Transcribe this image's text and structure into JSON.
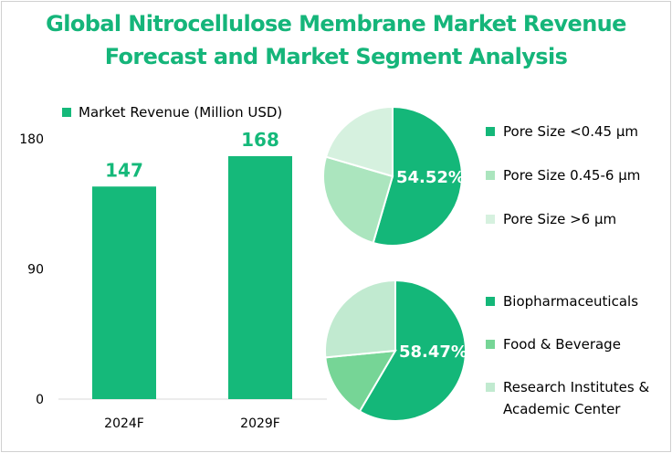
{
  "title_line1": "Global Nitrocellulose Membrane Market Revenue",
  "title_line2": "Forecast and Market Segment Analysis",
  "colors": {
    "title": "#15b57a",
    "bar": "#15b97a",
    "axis": "#d9d9d9",
    "pie_white_text": "#ffffff"
  },
  "chart_data": [
    {
      "type": "bar",
      "categories": [
        "2024F",
        "2029F"
      ],
      "series": [
        {
          "name": "Market Revenue (Million USD)",
          "values": [
            147,
            168
          ]
        }
      ],
      "data_labels": [
        "147",
        "168"
      ],
      "ylim": [
        0,
        180
      ],
      "yticks": [
        "0",
        "90",
        "180"
      ],
      "legend_position": "top"
    },
    {
      "type": "pie",
      "labels": [
        "Pore Size <0.45 μm",
        "Pore Size 0.45-6 μm",
        "Pore Size >6 μm"
      ],
      "values": [
        54.52,
        25.0,
        20.48
      ],
      "colors": [
        "#14b779",
        "#abe5be",
        "#d6f1df"
      ],
      "label_text": "54.52%",
      "legend_position": "right"
    },
    {
      "type": "pie",
      "labels": [
        "Biopharmaceuticals",
        "Food & Beverage",
        "Research Institutes & Academic Center"
      ],
      "values": [
        58.47,
        15.0,
        26.53
      ],
      "colors": [
        "#14b779",
        "#76d596",
        "#c1ead0"
      ],
      "label_text": "58.47%",
      "legend_position": "right"
    }
  ]
}
